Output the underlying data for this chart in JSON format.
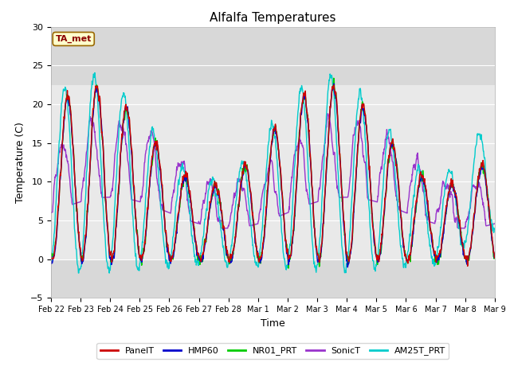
{
  "title": "Alfalfa Temperatures",
  "xlabel": "Time",
  "ylabel": "Temperature (C)",
  "ylim": [
    -5,
    30
  ],
  "yticks": [
    -5,
    0,
    5,
    10,
    15,
    20,
    25,
    30
  ],
  "shade_ymin": 0,
  "shade_ymax": 22.5,
  "annotation_text": "TA_met",
  "lines": {
    "PanelT": {
      "color": "#cc0000",
      "lw": 1.0
    },
    "HMP60": {
      "color": "#0000cc",
      "lw": 1.0
    },
    "NR01_PRT": {
      "color": "#00cc00",
      "lw": 1.0
    },
    "SonicT": {
      "color": "#9933cc",
      "lw": 1.0
    },
    "AM25T_PRT": {
      "color": "#00cccc",
      "lw": 1.0
    }
  },
  "n_points": 1440,
  "bg_color": "#d8d8d8",
  "fig_bg": "#ffffff",
  "xtick_labels": [
    "Feb 22",
    "Feb 23",
    "Feb 24",
    "Feb 25",
    "Feb 26",
    "Feb 27",
    "Feb 28",
    "Mar 1",
    "Mar 2",
    "Mar 3",
    "Mar 4",
    "Mar 5",
    "Mar 6",
    "Mar 7",
    "Mar 8",
    "Mar 9"
  ],
  "xtick_positions": [
    0,
    1,
    2,
    3,
    4,
    5,
    6,
    7,
    8,
    9,
    10,
    11,
    12,
    13,
    14,
    15
  ]
}
